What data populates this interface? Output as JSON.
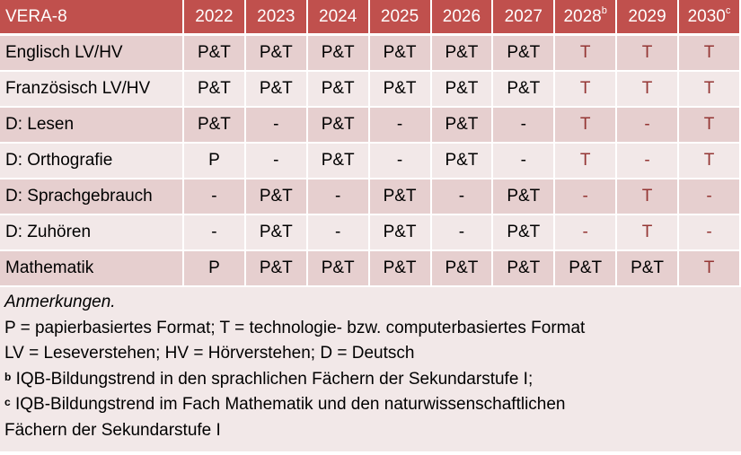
{
  "table": {
    "corner": "VERA-8",
    "columns": [
      {
        "label": "2022",
        "sup": ""
      },
      {
        "label": "2023",
        "sup": ""
      },
      {
        "label": "2024",
        "sup": ""
      },
      {
        "label": "2025",
        "sup": ""
      },
      {
        "label": "2026",
        "sup": ""
      },
      {
        "label": "2027",
        "sup": ""
      },
      {
        "label": "2028",
        "sup": "b"
      },
      {
        "label": "2029",
        "sup": ""
      },
      {
        "label": "2030",
        "sup": "c"
      }
    ],
    "rows": [
      {
        "label": "Englisch LV/HV",
        "cells": [
          "P&T",
          "P&T",
          "P&T",
          "P&T",
          "P&T",
          "P&T",
          "T",
          "T",
          "T"
        ]
      },
      {
        "label": "Französisch LV/HV",
        "cells": [
          "P&T",
          "P&T",
          "P&T",
          "P&T",
          "P&T",
          "P&T",
          "T",
          "T",
          "T"
        ]
      },
      {
        "label": "D: Lesen",
        "cells": [
          "P&T",
          "-",
          "P&T",
          "-",
          "P&T",
          "-",
          "T",
          "-",
          "T"
        ]
      },
      {
        "label": "D: Orthografie",
        "cells": [
          "P",
          "-",
          "P&T",
          "-",
          "P&T",
          "-",
          "T",
          "-",
          "T"
        ]
      },
      {
        "label": "D: Sprachgebrauch",
        "cells": [
          "-",
          "P&T",
          "-",
          "P&T",
          "-",
          "P&T",
          "-",
          "T",
          "-"
        ]
      },
      {
        "label": "D: Zuhören",
        "cells": [
          "-",
          "P&T",
          "-",
          "P&T",
          "-",
          "P&T",
          "-",
          "T",
          "-"
        ]
      },
      {
        "label": "Mathematik",
        "cells": [
          "P",
          "P&T",
          "P&T",
          "P&T",
          "P&T",
          "P&T",
          "P&T",
          "P&T",
          "T"
        ]
      }
    ]
  },
  "notes": {
    "title": "Anmerkungen.",
    "line1": "P = papierbasiertes Format; T = technologie- bzw. computerbasiertes Format",
    "line2": "LV = Leseverstehen; HV = Hörverstehen; D = Deutsch",
    "line3_mark": "b",
    "line3": " IQB-Bildungstrend in den sprachlichen Fächern der Sekundarstufe I;",
    "line4_mark": "c",
    "line4": " IQB-Bildungstrend im Fach Mathematik und den naturwissenschaftlichen",
    "line5": "Fächern der Sekundarstufe I"
  },
  "colors": {
    "header_bg": "#C0504D",
    "row_dark": "#E6CFCF",
    "row_light": "#F2E8E8",
    "highlight_text": "#943634"
  }
}
